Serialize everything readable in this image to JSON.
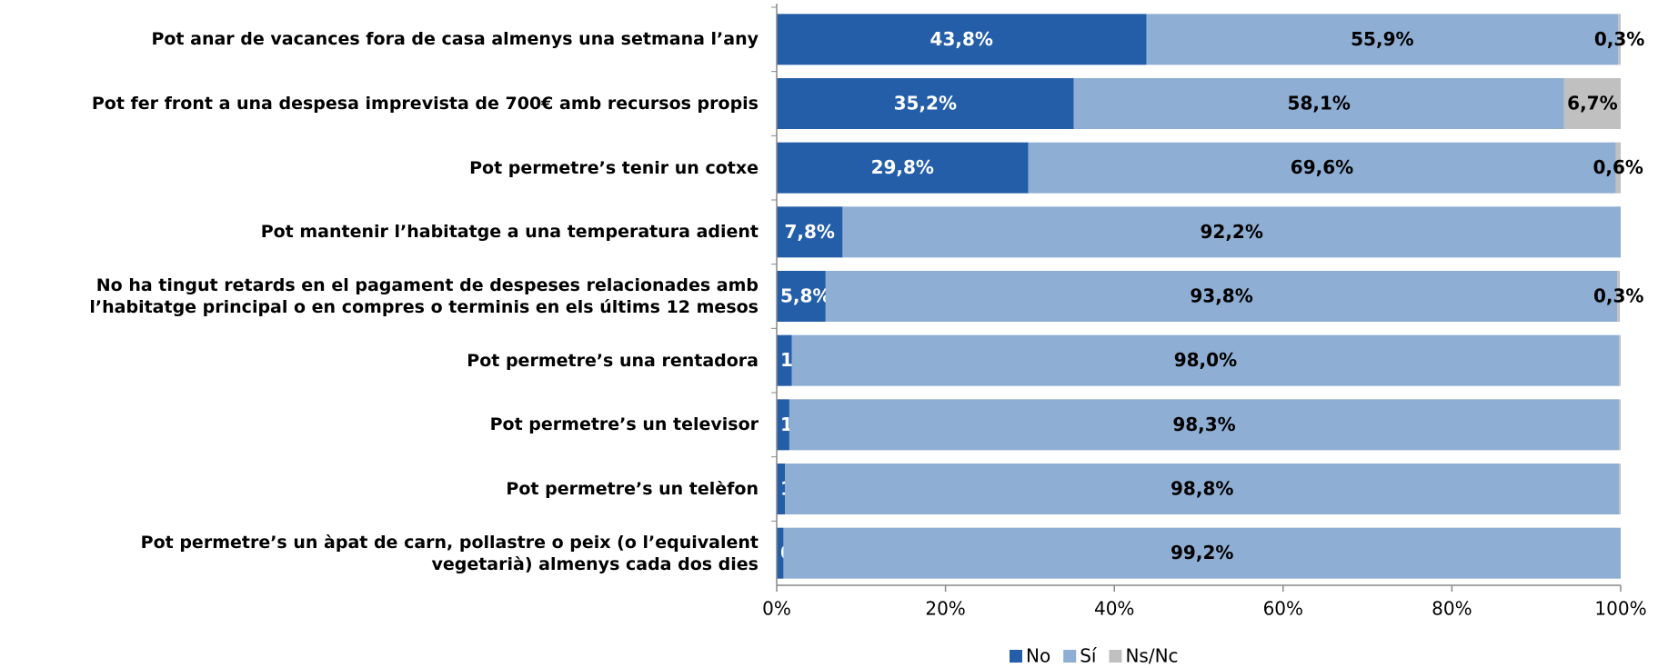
{
  "chart_data": {
    "type": "stacked_bar_horizontal",
    "categories": [
      "Pot anar de vacances fora de casa almenys una setmana l’any",
      "Pot fer front a una despesa imprevista de 700€ amb recursos propis",
      "Pot permetre’s tenir un cotxe",
      "Pot mantenir l’habitatge a una temperatura adient",
      "No ha tingut retards en el pagament de despeses relacionades amb\nl’habitatge principal o en compres o terminis en els últims 12 mesos",
      "Pot permetre’s una rentadora",
      "Pot permetre’s un televisor",
      "Pot permetre’s un telèfon",
      "Pot permetre’s un àpat de carn, pollastre o peix (o l’equivalent\nvegetarià) almenys cada dos dies"
    ],
    "series": [
      {
        "name": "No",
        "color": "#245ea8",
        "values": [
          43.8,
          35.2,
          29.8,
          7.8,
          5.8,
          1.8,
          1.5,
          1.0,
          0.8
        ],
        "value_labels": [
          "43,8%",
          "35,2%",
          "29,8%",
          "7,8%",
          "5,8%",
          "1,8%",
          "1,5%",
          "1,0%",
          "0,8%"
        ]
      },
      {
        "name": "Sí",
        "color": "#8eaed4",
        "values": [
          55.9,
          58.1,
          69.6,
          92.2,
          93.8,
          98.0,
          98.3,
          98.8,
          99.2
        ],
        "value_labels": [
          "55,9%",
          "58,1%",
          "69,6%",
          "92,2%",
          "93,8%",
          "98,0%",
          "98,3%",
          "98,8%",
          "99,2%"
        ]
      },
      {
        "name": "Ns/Nc",
        "color": "#c0c0c0",
        "values": [
          0.3,
          6.7,
          0.6,
          0,
          0.3,
          0.2,
          0.2,
          0.2,
          0
        ],
        "value_labels": [
          "0,3%",
          "6,7%",
          "0,6%",
          null,
          "0,3%",
          null,
          null,
          null,
          null
        ]
      }
    ],
    "xlim": [
      0,
      100
    ],
    "xticks": [
      {
        "value": 0,
        "label": "0%"
      },
      {
        "value": 20,
        "label": "20%"
      },
      {
        "value": 40,
        "label": "40%"
      },
      {
        "value": 60,
        "label": "60%"
      },
      {
        "value": 80,
        "label": "80%"
      },
      {
        "value": 100,
        "label": "100%"
      }
    ],
    "legend": "bottom"
  }
}
